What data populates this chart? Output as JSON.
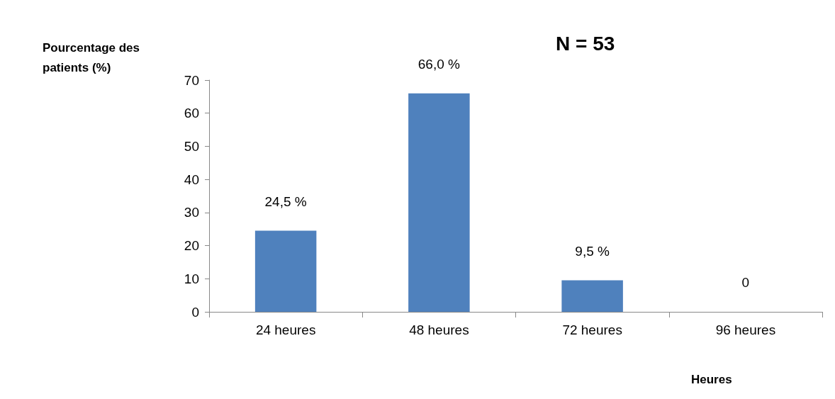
{
  "chart_data": {
    "type": "bar",
    "title": "N = 53",
    "ylabel": "Pourcentage des patients (%)",
    "xlabel": "Heures",
    "categories": [
      "24 heures",
      "48 heures",
      "72 heures",
      "96 heures"
    ],
    "values": [
      24.5,
      66.0,
      9.5,
      0
    ],
    "value_labels": [
      "24,5 %",
      "66,0 %",
      "9,5 %",
      "0"
    ],
    "color": "#4f81bd",
    "ylim": [
      0,
      70
    ],
    "yticks": [
      0,
      10,
      20,
      30,
      40,
      50,
      60,
      70
    ],
    "grid": false
  }
}
